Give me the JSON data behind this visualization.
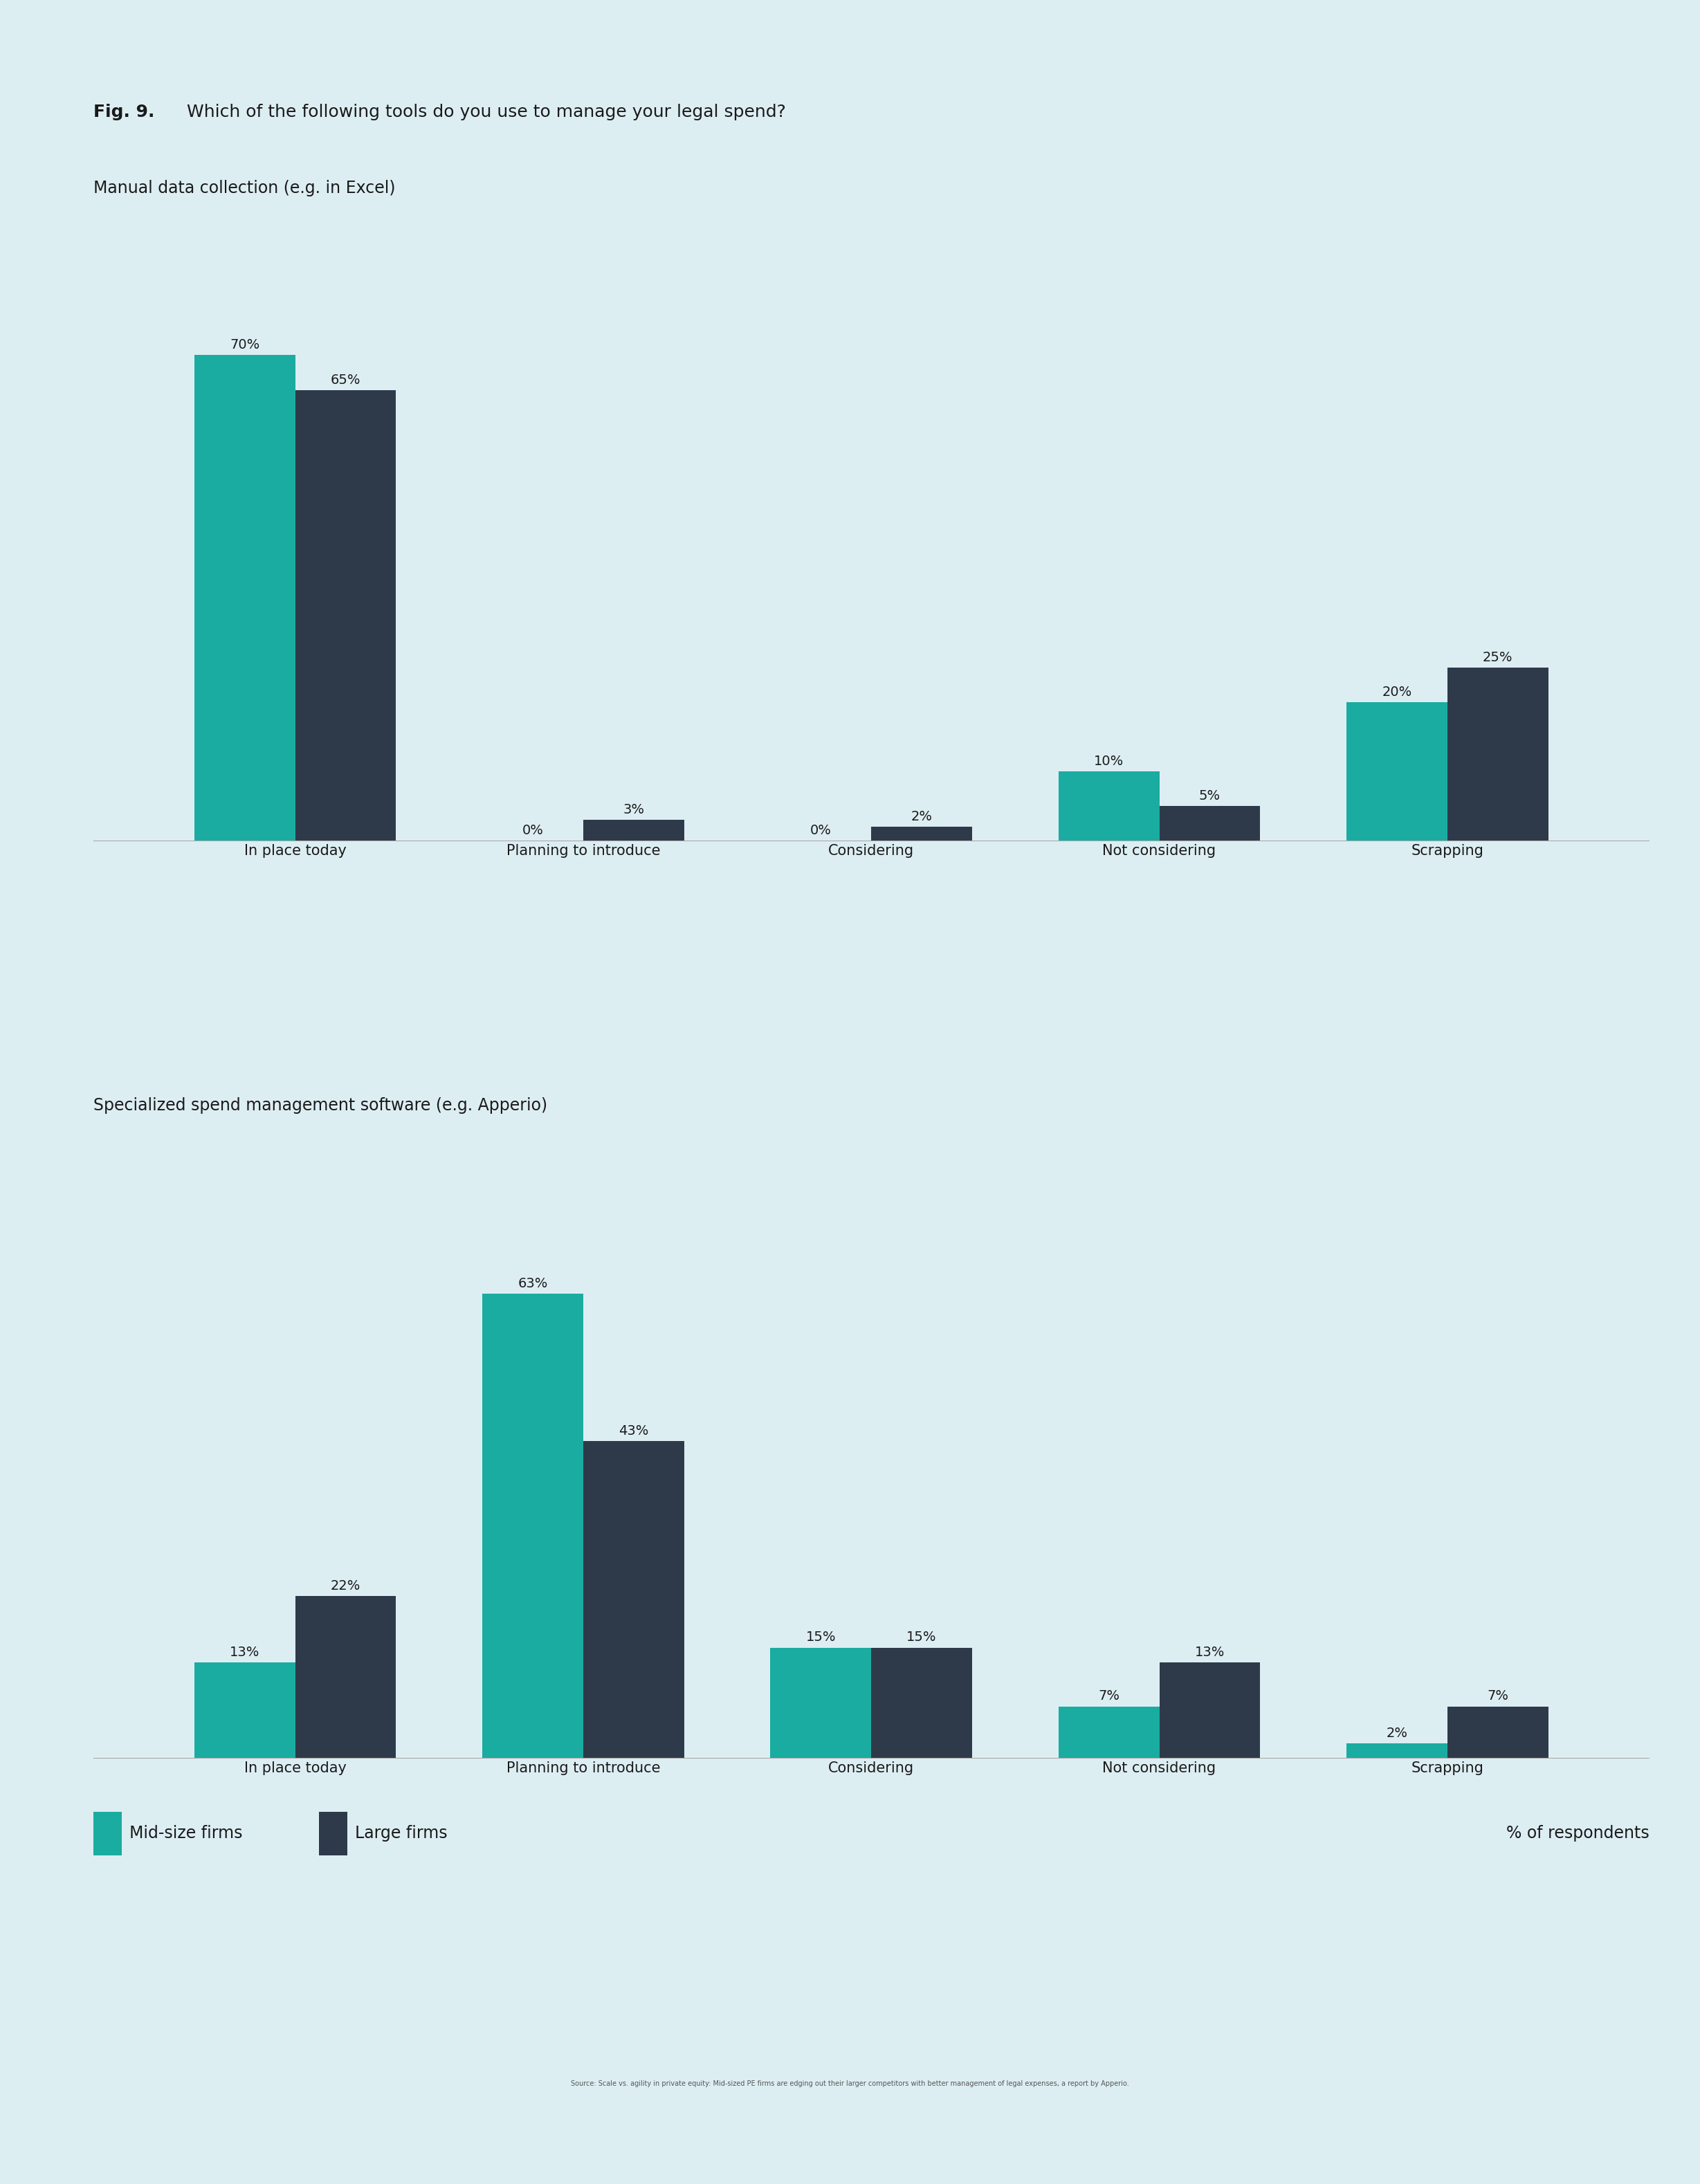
{
  "fig_label": "Fig. 9.",
  "fig_question": "Which of the following tools do you use to manage your legal spend?",
  "chart1_title": "Manual data collection (e.g. in Excel)",
  "chart2_title": "Specialized spend management software (e.g. Apperio)",
  "categories": [
    "In place today",
    "Planning to introduce",
    "Considering",
    "Not considering",
    "Scrapping"
  ],
  "chart1_mid": [
    70,
    0,
    0,
    10,
    20
  ],
  "chart1_large": [
    65,
    3,
    2,
    5,
    25
  ],
  "chart2_mid": [
    13,
    63,
    15,
    7,
    2
  ],
  "chart2_large": [
    22,
    43,
    15,
    13,
    7
  ],
  "mid_color": "#1aaca0",
  "large_color": "#2e3a4a",
  "bg_color": "#ddeef3",
  "text_color": "#1a1a1a",
  "legend_mid_label": "Mid-size firms",
  "legend_large_label": "Large firms",
  "legend_right_label": "% of respondents",
  "source_text": "Source: Scale vs. agility in private equity: Mid-sized PE firms are edging out their larger competitors with better management of legal expenses, a report by Apperio.",
  "bar_width": 0.35,
  "fig_label_fontsize": 18,
  "question_fontsize": 18,
  "chart_title_fontsize": 17,
  "value_fontsize": 14,
  "xtick_fontsize": 15,
  "legend_fontsize": 17
}
